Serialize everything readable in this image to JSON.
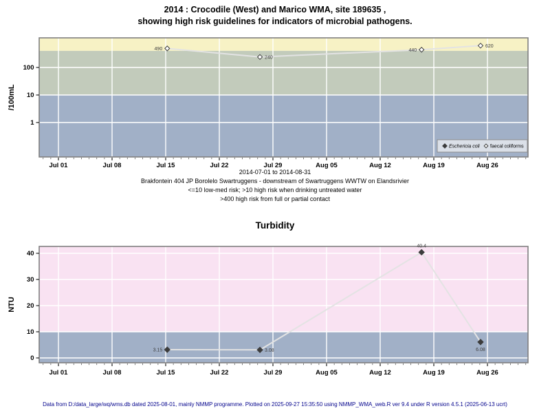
{
  "header": {
    "title_line1": "2014 : Crocodile (West) and Marico WMA, site 189635 ,",
    "title_line2": "showing high risk guidelines for indicators of microbial pathogens."
  },
  "footer": {
    "text": "Data from D:/data_large/wq/wms.db dated 2025-08-01, mainly NMMP programme. Plotted on 2025-09-27 15:35:50 using NMMP_WMA_web.R ver 9.4 under R version 4.5.1 (2025-06-13 ucrt)"
  },
  "colors": {
    "grid": "#ffffff",
    "plot_border": "#7f7f7f",
    "series_line": "#e3e3e3",
    "marker_stroke": "#3c3c3c",
    "point_label": "#3c3c3c",
    "tick": "#222222",
    "footer_text": "#00008b",
    "legend_bg": "#dbe0e8",
    "legend_border": "#8c8c8c",
    "band_yellow": "#f7f2c5",
    "band_green": "#c2cbbb",
    "band_blue": "#a1b0c7",
    "band_pink": "#f9e2f2"
  },
  "chart_data": [
    {
      "type": "line",
      "title": "",
      "ylabel": "/100mL",
      "yscale": "log",
      "yticks": [
        100,
        10,
        1
      ],
      "x_axis": {
        "tick_labels": [
          "Jul 01",
          "Jul 08",
          "Jul 15",
          "Jul 22",
          "Jul 29",
          "Aug 05",
          "Aug 12",
          "Aug 19",
          "Aug 26"
        ],
        "tick_days": [
          0,
          7,
          14,
          21,
          28,
          35,
          42,
          49,
          56
        ],
        "minor_day_range": [
          -2,
          61
        ]
      },
      "bands": [
        {
          "range": ">400",
          "meaning": "high risk from full or partial contact",
          "color": "#f7f2c5"
        },
        {
          "range": "10-400",
          "meaning": "high risk when drinking untreated water",
          "color": "#c2cbbb"
        },
        {
          "range": "<=10",
          "meaning": "low-med risk",
          "color": "#a1b0c7"
        }
      ],
      "series": [
        {
          "name": "faecal coliforms",
          "marker": "open-diamond",
          "dates": [
            "2014-07-15",
            "2014-07-27",
            "2014-08-17",
            "2014-08-25"
          ],
          "days_from_jul01": [
            14.2,
            26.3,
            47.4,
            55.1
          ],
          "values": [
            490,
            240,
            440,
            620
          ],
          "point_labels": [
            "490",
            "240",
            "440",
            "620"
          ],
          "label_side": [
            "left",
            "right",
            "left",
            "right"
          ]
        }
      ],
      "legend": {
        "position": "bottom-right",
        "items": [
          {
            "symbol": "filled-diamond",
            "label": "Eschericia coli",
            "italic": true
          },
          {
            "symbol": "open-diamond",
            "label": "faecal coliforms",
            "italic": false
          }
        ]
      },
      "subtitle_lines": [
        "2014-07-01 to 2014-08-31",
        "Brakfontein 404 JP Borolelo Swartruggens - downstream of Swartruggens WWTW on Elandsrivier",
        "<=10 low-med risk; >10 high risk when drinking untreated water",
        ">400 high risk from full or partial contact"
      ]
    },
    {
      "type": "line",
      "title": "Turbidity",
      "ylabel": "NTU",
      "yscale": "linear",
      "yticks": [
        40,
        30,
        20,
        10,
        0
      ],
      "x_axis": {
        "tick_labels": [
          "Jul 01",
          "Jul 08",
          "Jul 15",
          "Jul 22",
          "Jul 29",
          "Aug 05",
          "Aug 12",
          "Aug 19",
          "Aug 26"
        ],
        "tick_days": [
          0,
          7,
          14,
          21,
          28,
          35,
          42,
          49,
          56
        ],
        "minor_day_range": [
          -2,
          61
        ]
      },
      "bands": [
        {
          "range": ">10",
          "color": "#f9e2f2"
        },
        {
          "range": "<=10",
          "color": "#a1b0c7"
        }
      ],
      "series": [
        {
          "name": "Turbidity",
          "marker": "filled-diamond",
          "dates": [
            "2014-07-15",
            "2014-07-27",
            "2014-08-17",
            "2014-08-25"
          ],
          "days_from_jul01": [
            14.2,
            26.3,
            47.4,
            55.1
          ],
          "values": [
            3.15,
            3.08,
            40.4,
            6.08
          ],
          "point_labels": [
            "3.15",
            "3.08",
            "40.4",
            "6.08"
          ],
          "label_side": [
            "left",
            "right",
            "above",
            "below"
          ]
        }
      ]
    }
  ]
}
